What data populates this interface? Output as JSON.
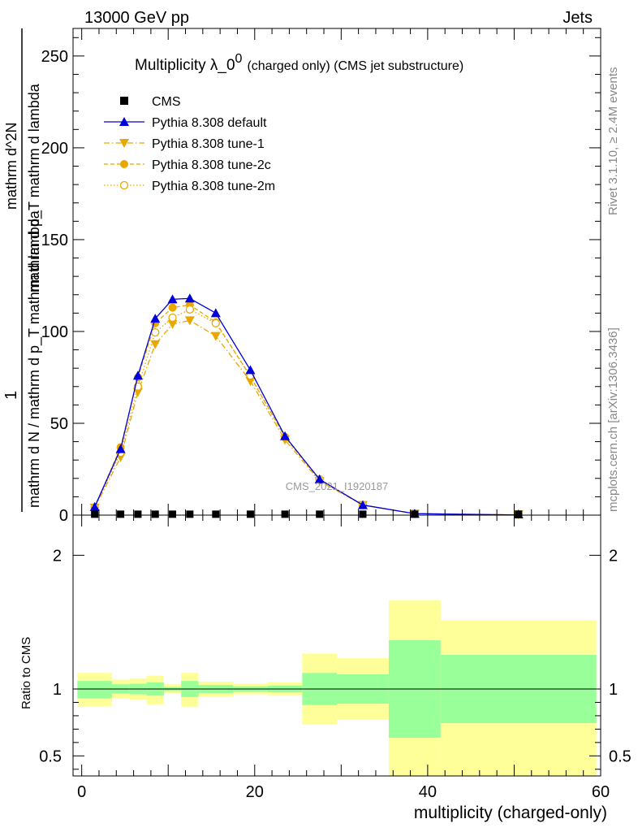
{
  "header": {
    "left": "13000 GeV pp",
    "right": "Jets"
  },
  "side_notes": {
    "rivet": "Rivet 3.1.10, ≥ 2.4M events",
    "mcplots": "mcplots.cern.ch [arXiv:1306.3436]"
  },
  "watermark": "CMS_2021_I1920187",
  "colors": {
    "cms": "#000000",
    "default": "#0000dd",
    "tune": "#e8a800",
    "band_inner": "#99ff99",
    "band_outer": "#ffff99"
  },
  "chart_data": [
    {
      "type": "line",
      "title": "Multiplicity λ_0^0 (charged only) (CMS jet substructure)",
      "title_main": "Multiplicity λ_0",
      "title_sup": "0",
      "title_sub": "(charged only) (CMS jet substructure)",
      "ylabel_numerator": "1",
      "ylabel_denominator": "mathrm d N / mathrm d p_T mathrm d lambda",
      "ylabel_right": "mathrm d^2N",
      "ylabel_right_lower": "mathrm d p_T mathrm d lambda",
      "xlim": [
        -1,
        60
      ],
      "ylim": [
        0,
        265
      ],
      "yticks": [
        0,
        50,
        100,
        150,
        200,
        250
      ],
      "legend_position": "top-left",
      "series": [
        {
          "name": "CMS",
          "style": "square",
          "x": [
            1.5,
            4.5,
            6.5,
            8.5,
            10.5,
            12.5,
            15.5,
            19.5,
            23.5,
            27.5,
            32.5,
            38.5,
            50.5
          ],
          "y": [
            0.5,
            0.5,
            0.5,
            0.5,
            0.5,
            0.5,
            0.5,
            0.5,
            0.5,
            0.5,
            0.5,
            0.5,
            0.5
          ]
        },
        {
          "name": "Pythia 8.308 default",
          "style": "triangle-up-solid",
          "x": [
            1.5,
            4.5,
            6.5,
            8.5,
            10.5,
            12.5,
            15.5,
            19.5,
            23.5,
            27.5,
            32.5,
            38.5,
            50.5
          ],
          "y": [
            4.5,
            36,
            76,
            107,
            117.5,
            118,
            110,
            79,
            43,
            19.5,
            5.5,
            0.8,
            0.1
          ]
        },
        {
          "name": "Pythia 8.308 tune-1",
          "style": "triangle-down-dashdot",
          "x": [
            1.5,
            4.5,
            6.5,
            8.5,
            10.5,
            12.5,
            15.5,
            19.5,
            23.5,
            27.5,
            32.5,
            38.5,
            50.5
          ],
          "y": [
            4.0,
            31.5,
            67,
            93,
            104,
            106,
            97.5,
            73,
            41,
            18.5,
            5.5,
            0.8,
            0.1
          ]
        },
        {
          "name": "Pythia 8.308 tune-2c",
          "style": "circle-dashed",
          "x": [
            1.5,
            4.5,
            6.5,
            8.5,
            10.5,
            12.5,
            15.5,
            19.5,
            23.5,
            27.5,
            32.5,
            38.5,
            50.5
          ],
          "y": [
            4.3,
            37,
            75,
            104.5,
            113,
            114.5,
            105,
            75.5,
            42.5,
            19,
            5.5,
            0.8,
            0.1
          ]
        },
        {
          "name": "Pythia 8.308 tune-2m",
          "style": "circle-open-dotted",
          "x": [
            1.5,
            4.5,
            6.5,
            8.5,
            10.5,
            12.5,
            15.5,
            19.5,
            23.5,
            27.5,
            32.5,
            38.5,
            50.5
          ],
          "y": [
            4.2,
            34,
            70,
            99.5,
            107.5,
            112,
            104.5,
            76,
            42.5,
            19.5,
            5.5,
            0.8,
            0.1
          ]
        }
      ]
    },
    {
      "type": "area",
      "ylabel": "Ratio to CMS",
      "xlabel": "multiplicity (charged-only)",
      "xlim": [
        -1,
        60
      ],
      "ylim": [
        0.35,
        2.3
      ],
      "yticks": [
        0.5,
        1,
        2
      ],
      "xticks": [
        0,
        20,
        40,
        60
      ],
      "reference_line": 1,
      "bins": [
        {
          "lo": -0.5,
          "hi": 3.5,
          "inner": [
            0.93,
            1.06
          ],
          "outer": [
            0.87,
            1.12
          ]
        },
        {
          "lo": 3.5,
          "hi": 5.5,
          "inner": [
            0.965,
            1.035
          ],
          "outer": [
            0.93,
            1.07
          ]
        },
        {
          "lo": 5.5,
          "hi": 7.5,
          "inner": [
            0.96,
            1.04
          ],
          "outer": [
            0.92,
            1.08
          ]
        },
        {
          "lo": 7.5,
          "hi": 9.5,
          "inner": [
            0.95,
            1.05
          ],
          "outer": [
            0.885,
            1.1
          ]
        },
        {
          "lo": 9.5,
          "hi": 11.5,
          "inner": [
            0.985,
            1.015
          ],
          "outer": [
            0.97,
            1.035
          ]
        },
        {
          "lo": 11.5,
          "hi": 13.5,
          "inner": [
            0.94,
            1.06
          ],
          "outer": [
            0.865,
            1.12
          ]
        },
        {
          "lo": 13.5,
          "hi": 17.5,
          "inner": [
            0.97,
            1.03
          ],
          "outer": [
            0.945,
            1.055
          ]
        },
        {
          "lo": 17.5,
          "hi": 21.5,
          "inner": [
            0.98,
            1.02
          ],
          "outer": [
            0.96,
            1.04
          ]
        },
        {
          "lo": 21.5,
          "hi": 25.5,
          "inner": [
            0.975,
            1.025
          ],
          "outer": [
            0.95,
            1.05
          ]
        },
        {
          "lo": 25.5,
          "hi": 29.5,
          "inner": [
            0.88,
            1.12
          ],
          "outer": [
            0.735,
            1.265
          ]
        },
        {
          "lo": 29.5,
          "hi": 35.5,
          "inner": [
            0.89,
            1.11
          ],
          "outer": [
            0.77,
            1.23
          ]
        },
        {
          "lo": 35.5,
          "hi": 41.5,
          "inner": [
            0.635,
            1.365
          ],
          "outer": [
            0.35,
            1.665
          ]
        },
        {
          "lo": 41.5,
          "hi": 59.5,
          "inner": [
            0.745,
            1.255
          ],
          "outer": [
            0.35,
            1.515
          ]
        }
      ]
    }
  ]
}
